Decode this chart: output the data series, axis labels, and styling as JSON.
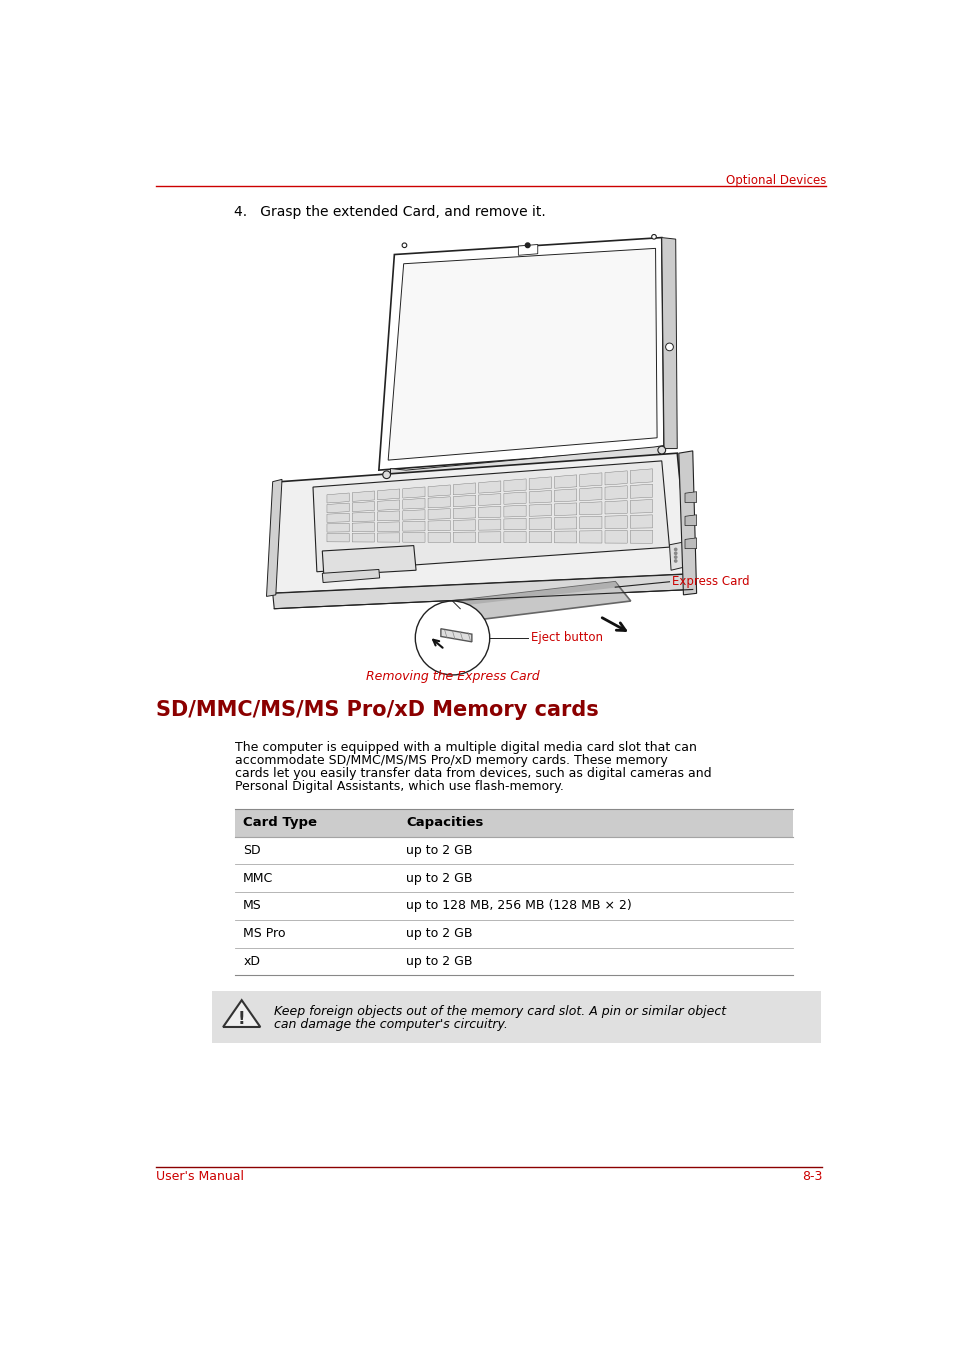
{
  "bg_color": "#ffffff",
  "header_text": "Optional Devices",
  "header_color": "#cc0000",
  "header_line_color": "#cc0000",
  "footer_left": "User's Manual",
  "footer_right": "8-3",
  "footer_color": "#cc0000",
  "footer_line_color": "#8b0000",
  "step_text": "4.   Grasp the extended Card, and remove it.",
  "step_text_color": "#000000",
  "caption_text": "Removing the Express Card",
  "caption_color": "#cc0000",
  "express_card_label": "Express Card",
  "eject_button_label": "Eject button",
  "label_color": "#cc0000",
  "section_title": "SD/MMC/MS/MS Pro/xD Memory cards",
  "section_title_color": "#8b0000",
  "body_text_lines": [
    "The computer is equipped with a multiple digital media card slot that can",
    "accommodate SD/MMC/MS/MS Pro/xD memory cards. These memory",
    "cards let you easily transfer data from devices, such as digital cameras and",
    "Personal Digital Assistants, which use flash-memory."
  ],
  "body_color": "#000000",
  "table_header_bg": "#cccccc",
  "table_line_color": "#aaaaaa",
  "table_col1_header": "Card Type",
  "table_col2_header": "Capacities",
  "table_data": [
    [
      "SD",
      "up to 2 GB"
    ],
    [
      "MMC",
      "up to 2 GB"
    ],
    [
      "MS",
      "up to 128 MB, 256 MB (128 MB × 2)"
    ],
    [
      "MS Pro",
      "up to 2 GB"
    ],
    [
      "xD",
      "up to 2 GB"
    ]
  ],
  "note_bg": "#e0e0e0",
  "note_text_lines": [
    "Keep foreign objects out of the memory card slot. A pin or similar object",
    "can damage the computer's circuitry."
  ],
  "note_color": "#000000",
  "lc": "#222222",
  "lw": 1.2
}
